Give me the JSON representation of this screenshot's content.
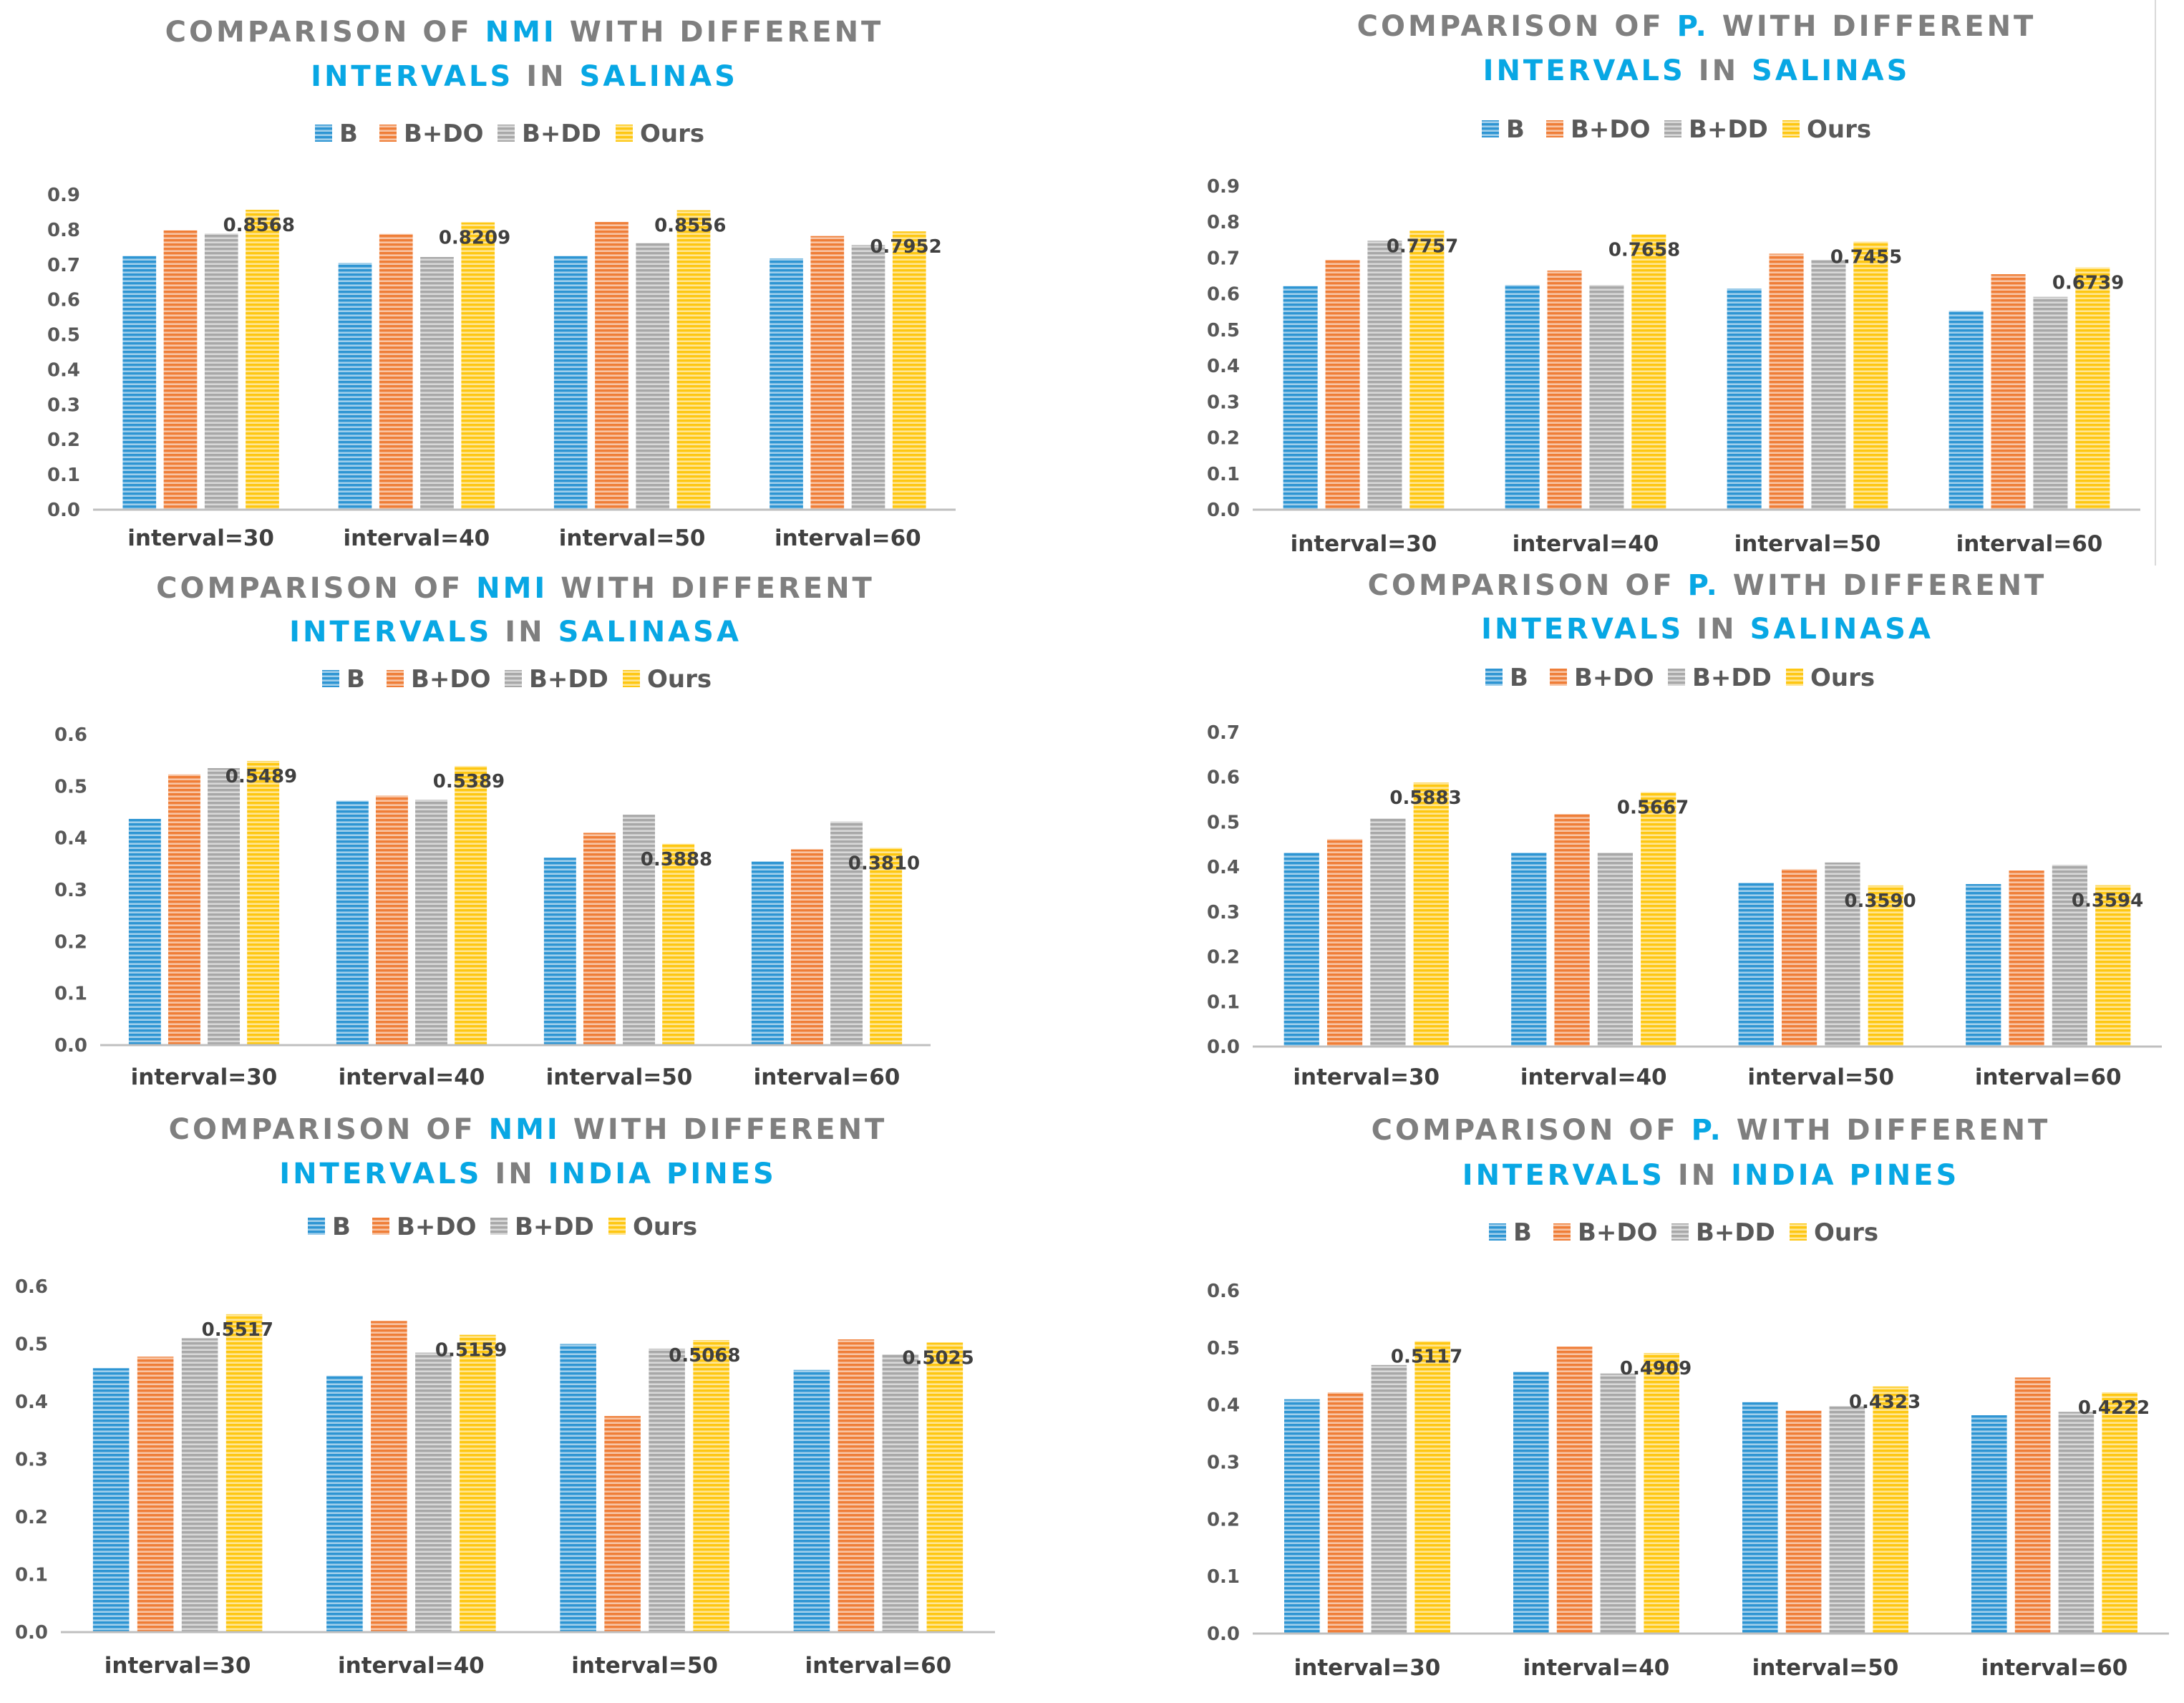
{
  "legend": [
    "B",
    "B+DO",
    "B+DD",
    "Ours"
  ],
  "colors": {
    "B": "#2e95d3",
    "B+DO": "#ef7e38",
    "B+DD": "#a8a8a8",
    "Ours": "#fec712",
    "title_gray": "#7f7f7f",
    "title_blue": "#08a7e4",
    "axis": "#bfbfbf",
    "text": "#595959"
  },
  "chart_data": [
    {
      "type": "bar",
      "title_line1": [
        [
          "COMPARISON OF ",
          "gray"
        ],
        [
          "NMI",
          "blue"
        ],
        [
          " WITH DIFFERENT",
          "gray"
        ]
      ],
      "title_line2": [
        [
          "INTERVALS",
          "blue"
        ],
        [
          " IN ",
          "gray"
        ],
        [
          "SALINAS",
          "blue"
        ]
      ],
      "categories": [
        "interval=30",
        "interval=40",
        "interval=50",
        "interval=60"
      ],
      "series": [
        {
          "name": "B",
          "values": [
            0.725,
            0.705,
            0.725,
            0.718
          ]
        },
        {
          "name": "B+DO",
          "values": [
            0.798,
            0.788,
            0.822,
            0.782
          ]
        },
        {
          "name": "B+DD",
          "values": [
            0.789,
            0.722,
            0.762,
            0.756
          ]
        },
        {
          "name": "Ours",
          "values": [
            0.8568,
            0.8209,
            0.8556,
            0.7952
          ]
        }
      ],
      "data_labels": [
        "0.8568",
        "0.8209",
        "0.8556",
        "0.7952"
      ],
      "yticks": [
        "0.0",
        "0.1",
        "0.2",
        "0.3",
        "0.4",
        "0.5",
        "0.6",
        "0.7",
        "0.8",
        "0.9"
      ],
      "ylim": [
        0,
        0.9
      ]
    },
    {
      "type": "bar",
      "title_line1": [
        [
          "COMPARISON OF ",
          "gray"
        ],
        [
          "P.",
          "blue"
        ],
        [
          " WITH DIFFERENT",
          "gray"
        ]
      ],
      "title_line2": [
        [
          "INTERVALS",
          "blue"
        ],
        [
          " IN ",
          "gray"
        ],
        [
          "SALINAS",
          "blue"
        ]
      ],
      "categories": [
        "interval=30",
        "interval=40",
        "interval=50",
        "interval=60"
      ],
      "series": [
        {
          "name": "B",
          "values": [
            0.622,
            0.625,
            0.615,
            0.553
          ]
        },
        {
          "name": "B+DO",
          "values": [
            0.695,
            0.665,
            0.712,
            0.655
          ]
        },
        {
          "name": "B+DD",
          "values": [
            0.748,
            0.625,
            0.695,
            0.592
          ]
        },
        {
          "name": "Ours",
          "values": [
            0.7757,
            0.7658,
            0.7455,
            0.6739
          ]
        }
      ],
      "data_labels": [
        "0.7757",
        "0.7658",
        "0.7455",
        "0.6739"
      ],
      "yticks": [
        "0.0",
        "0.1",
        "0.2",
        "0.3",
        "0.4",
        "0.5",
        "0.6",
        "0.7",
        "0.8",
        "0.9"
      ],
      "ylim": [
        0,
        0.9
      ]
    },
    {
      "type": "bar",
      "title_line1": [
        [
          "COMPARISON OF ",
          "gray"
        ],
        [
          "NMI",
          "blue"
        ],
        [
          " WITH DIFFERENT",
          "gray"
        ]
      ],
      "title_line2": [
        [
          "INTERVALS",
          "blue"
        ],
        [
          " IN ",
          "gray"
        ],
        [
          "SALINASA",
          "blue"
        ]
      ],
      "categories": [
        "interval=30",
        "interval=40",
        "interval=50",
        "interval=60"
      ],
      "series": [
        {
          "name": "B",
          "values": [
            0.437,
            0.472,
            0.362,
            0.355
          ]
        },
        {
          "name": "B+DO",
          "values": [
            0.523,
            0.482,
            0.41,
            0.378
          ]
        },
        {
          "name": "B+DD",
          "values": [
            0.535,
            0.474,
            0.445,
            0.432
          ]
        },
        {
          "name": "Ours",
          "values": [
            0.5489,
            0.5389,
            0.3888,
            0.381
          ]
        }
      ],
      "data_labels": [
        "0.5489",
        "0.5389",
        "0.3888",
        "0.3810"
      ],
      "yticks": [
        "0.0",
        "0.1",
        "0.2",
        "0.3",
        "0.4",
        "0.5",
        "0.6"
      ],
      "ylim": [
        0,
        0.6
      ]
    },
    {
      "type": "bar",
      "title_line1": [
        [
          "COMPARISON OF ",
          "gray"
        ],
        [
          "P.",
          "blue"
        ],
        [
          " WITH DIFFERENT",
          "gray"
        ]
      ],
      "title_line2": [
        [
          "INTERVALS",
          "blue"
        ],
        [
          " IN ",
          "gray"
        ],
        [
          "SALINASA",
          "blue"
        ]
      ],
      "categories": [
        "interval=30",
        "interval=40",
        "interval=50",
        "interval=60"
      ],
      "series": [
        {
          "name": "B",
          "values": [
            0.432,
            0.432,
            0.365,
            0.362
          ]
        },
        {
          "name": "B+DO",
          "values": [
            0.462,
            0.518,
            0.395,
            0.392
          ]
        },
        {
          "name": "B+DD",
          "values": [
            0.508,
            0.432,
            0.41,
            0.405
          ]
        },
        {
          "name": "Ours",
          "values": [
            0.5883,
            0.5667,
            0.359,
            0.3594
          ]
        }
      ],
      "data_labels": [
        "0.5883",
        "0.5667",
        "0.3590",
        "0.3594"
      ],
      "yticks": [
        "0.0",
        "0.1",
        "0.2",
        "0.3",
        "0.4",
        "0.5",
        "0.6",
        "0.7"
      ],
      "ylim": [
        0,
        0.7
      ]
    },
    {
      "type": "bar",
      "title_line1": [
        [
          "COMPARISON OF ",
          "gray"
        ],
        [
          "NMI",
          "blue"
        ],
        [
          " WITH DIFFERENT",
          "gray"
        ]
      ],
      "title_line2": [
        [
          "INTERVALS",
          "blue"
        ],
        [
          " IN ",
          "gray"
        ],
        [
          "INDIA PINES",
          "blue"
        ]
      ],
      "categories": [
        "interval=30",
        "interval=40",
        "interval=50",
        "interval=60"
      ],
      "series": [
        {
          "name": "B",
          "values": [
            0.458,
            0.445,
            0.5,
            0.455
          ]
        },
        {
          "name": "B+DO",
          "values": [
            0.478,
            0.54,
            0.375,
            0.508
          ]
        },
        {
          "name": "B+DD",
          "values": [
            0.51,
            0.485,
            0.492,
            0.482
          ]
        },
        {
          "name": "Ours",
          "values": [
            0.5517,
            0.5159,
            0.5068,
            0.5025
          ]
        }
      ],
      "data_labels": [
        "0.5517",
        "0.5159",
        "0.5068",
        "0.5025"
      ],
      "yticks": [
        "0.0",
        "0.1",
        "0.2",
        "0.3",
        "0.4",
        "0.5",
        "0.6"
      ],
      "ylim": [
        0,
        0.6
      ]
    },
    {
      "type": "bar",
      "title_line1": [
        [
          "COMPARISON OF ",
          "gray"
        ],
        [
          "P.",
          "blue"
        ],
        [
          " WITH DIFFERENT",
          "gray"
        ]
      ],
      "title_line2": [
        [
          "INTERVALS",
          "blue"
        ],
        [
          " IN ",
          "gray"
        ],
        [
          "INDIA PINES",
          "blue"
        ]
      ],
      "categories": [
        "interval=30",
        "interval=40",
        "interval=50",
        "interval=60"
      ],
      "series": [
        {
          "name": "B",
          "values": [
            0.41,
            0.458,
            0.405,
            0.382
          ]
        },
        {
          "name": "B+DO",
          "values": [
            0.422,
            0.502,
            0.39,
            0.448
          ]
        },
        {
          "name": "B+DD",
          "values": [
            0.47,
            0.455,
            0.398,
            0.388
          ]
        },
        {
          "name": "Ours",
          "values": [
            0.5117,
            0.4909,
            0.4323,
            0.4222
          ]
        }
      ],
      "data_labels": [
        "0.5117",
        "0.4909",
        "0.4323",
        "0.4222"
      ],
      "yticks": [
        "0.0",
        "0.1",
        "0.2",
        "0.3",
        "0.4",
        "0.5",
        "0.6"
      ],
      "ylim": [
        0,
        0.6
      ]
    }
  ]
}
